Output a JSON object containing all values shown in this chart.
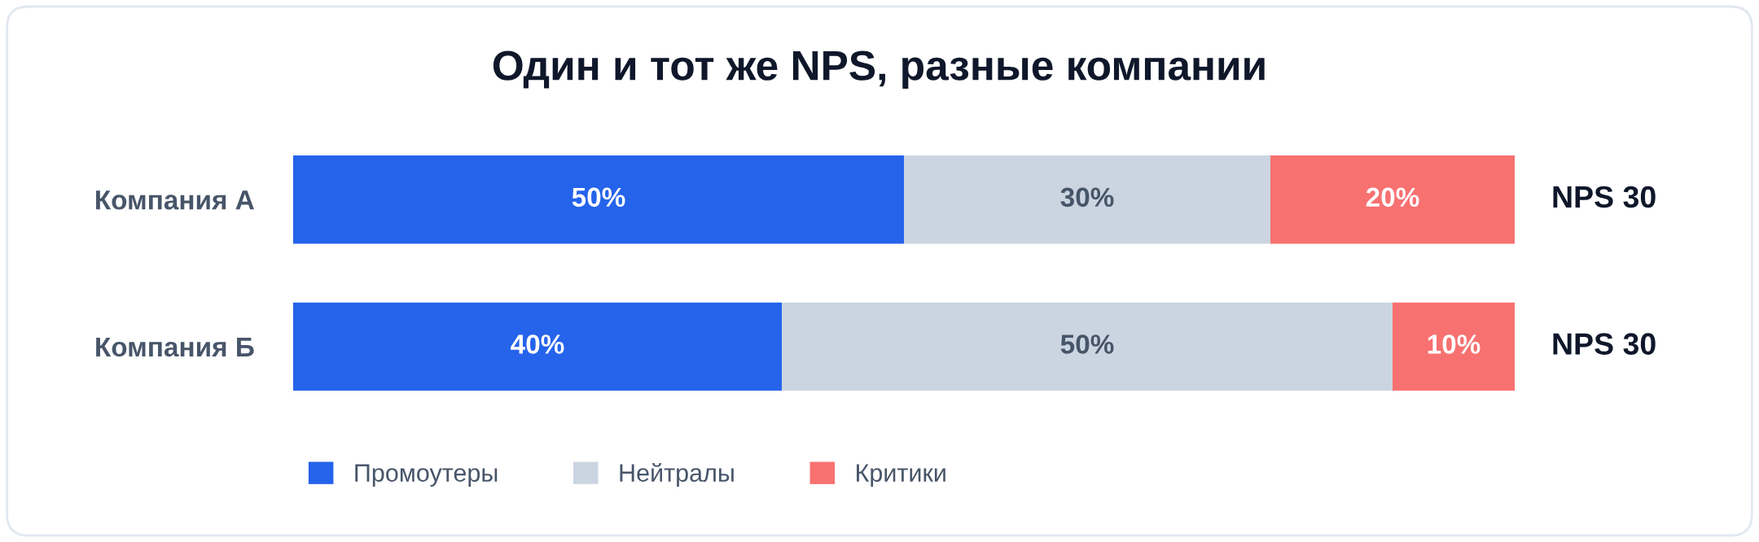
{
  "chart_data": {
    "type": "bar",
    "orientation": "horizontal",
    "stacked": true,
    "title": "Один и тот же NPS, разные компании",
    "categories": [
      "Компания А",
      "Компания Б"
    ],
    "series": [
      {
        "name": "Промоутеры",
        "color": "#2563eb",
        "values": [
          50,
          40
        ],
        "value_labels": [
          "50%",
          "40%"
        ]
      },
      {
        "name": "Нейтралы",
        "color": "#cbd5e1",
        "values": [
          30,
          50
        ],
        "value_labels": [
          "30%",
          "50%"
        ]
      },
      {
        "name": "Критики",
        "color": "#f87171",
        "values": [
          20,
          10
        ],
        "value_labels": [
          "20%",
          "10%"
        ]
      }
    ],
    "annotations": [
      "NPS 30",
      "NPS 30"
    ],
    "legend": "bottom left",
    "grid": false,
    "tick_labels": "y"
  }
}
